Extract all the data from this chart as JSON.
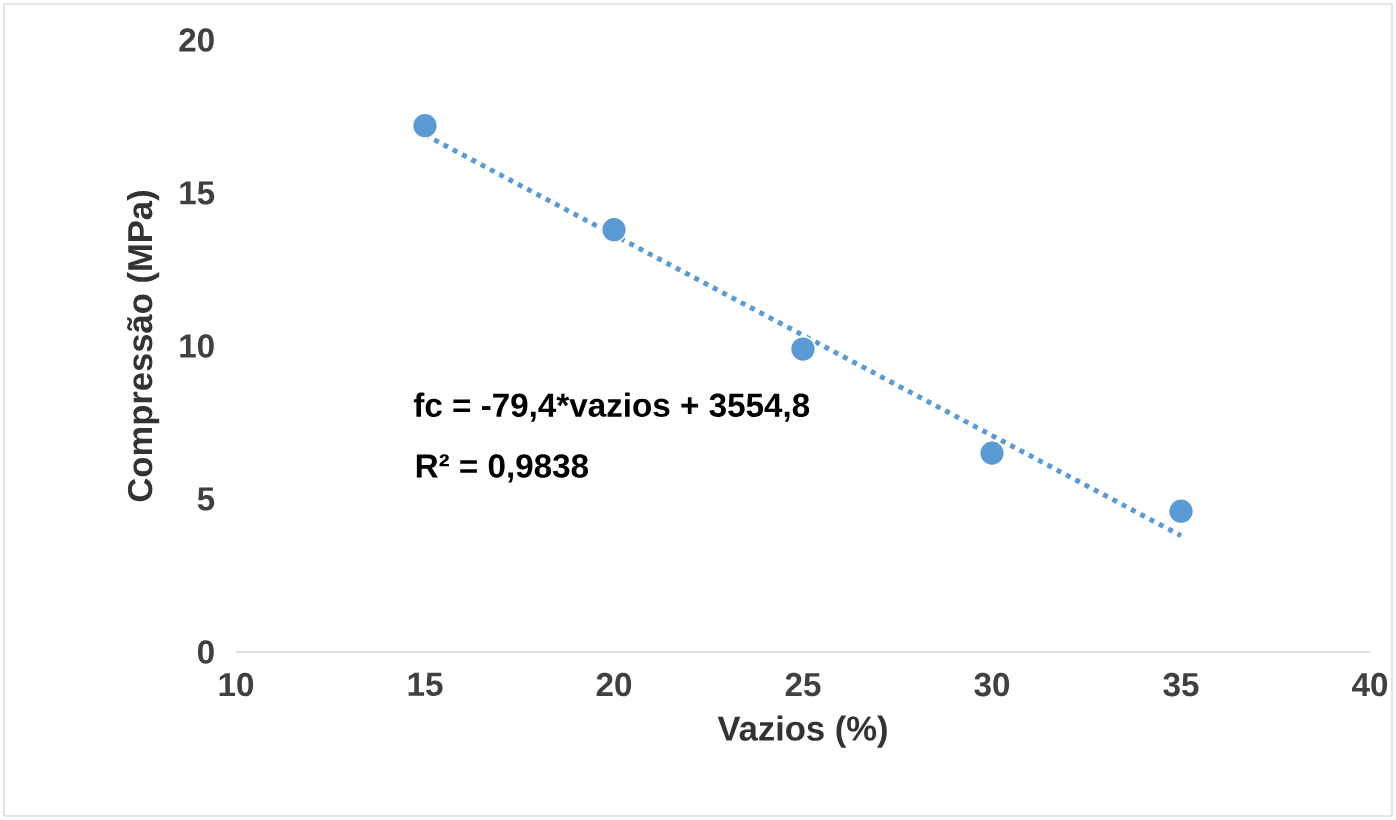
{
  "chart_data": {
    "type": "scatter",
    "xlabel": "Vazios (%)",
    "ylabel": "Compressão (MPa)",
    "xlim": [
      10,
      40
    ],
    "xticks": [
      10,
      15,
      20,
      25,
      30,
      35,
      40
    ],
    "ylim": [
      0,
      20
    ],
    "yticks": [
      0,
      5,
      10,
      15,
      20
    ],
    "grid": false,
    "series": [
      {
        "color": "#5b9bd5",
        "marker": "circle",
        "x": [
          15,
          20,
          25,
          30,
          35
        ],
        "values": [
          17.2,
          13.8,
          9.9,
          6.5,
          4.6
        ]
      },
      {
        "type": "line",
        "color": "#5b9bd5",
        "line_style": "dotted",
        "x": [
          15,
          35
        ],
        "values": [
          16.9,
          3.8
        ]
      }
    ],
    "annotations": [
      "fc = -79,4*vazios + 3554,8",
      "R² = 0,9838"
    ]
  }
}
